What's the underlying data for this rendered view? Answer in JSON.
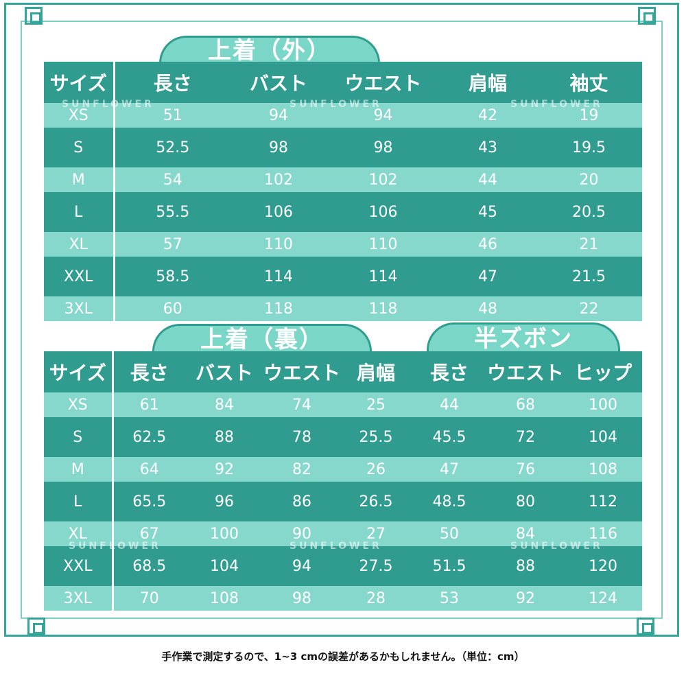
{
  "top": {
    "title": "上着（外）",
    "headers": [
      "サイズ",
      "長さ",
      "バスト",
      "ウエスト",
      "肩幅",
      "袖丈"
    ],
    "rows": [
      [
        "XS",
        "51",
        "94",
        "94",
        "42",
        "19"
      ],
      [
        "S",
        "52.5",
        "98",
        "98",
        "43",
        "19.5"
      ],
      [
        "M",
        "54",
        "102",
        "102",
        "44",
        "20"
      ],
      [
        "L",
        "55.5",
        "106",
        "106",
        "45",
        "20.5"
      ],
      [
        "XL",
        "57",
        "110",
        "110",
        "46",
        "21"
      ],
      [
        "XXL",
        "58.5",
        "114",
        "114",
        "47",
        "21.5"
      ],
      [
        "3XL",
        "60",
        "118",
        "118",
        "48",
        "22"
      ]
    ]
  },
  "bottom_left": {
    "title": "上着（裏）",
    "headers": [
      "サイズ",
      "長さ",
      "バスト",
      "ウエスト",
      "肩幅"
    ],
    "rows": [
      [
        "XS",
        "61",
        "84",
        "74",
        "25"
      ],
      [
        "S",
        "62.5",
        "88",
        "78",
        "25.5"
      ],
      [
        "M",
        "64",
        "92",
        "82",
        "26"
      ],
      [
        "L",
        "65.5",
        "96",
        "86",
        "26.5"
      ],
      [
        "XL",
        "67",
        "100",
        "90",
        "27"
      ],
      [
        "XXL",
        "68.5",
        "104",
        "94",
        "27.5"
      ],
      [
        "3XL",
        "70",
        "108",
        "98",
        "28"
      ]
    ]
  },
  "bottom_right": {
    "title": "半ズボン",
    "headers": [
      "長さ",
      "ウエスト",
      "ヒップ"
    ],
    "rows": [
      [
        "44",
        "68",
        "100"
      ],
      [
        "45.5",
        "72",
        "104"
      ],
      [
        "47",
        "76",
        "108"
      ],
      [
        "48.5",
        "80",
        "112"
      ],
      [
        "50",
        "84",
        "116"
      ],
      [
        "51.5",
        "88",
        "120"
      ],
      [
        "53",
        "92",
        "124"
      ]
    ]
  },
  "watermark": "SUNFLOWER",
  "footnote": "手作業で測定するので、1~3 cmの誤差があるかもしれません。（単位：cm）",
  "colors": {
    "dark": "#2f9c8f",
    "light": "#86d8cd",
    "border": "#34a598"
  }
}
